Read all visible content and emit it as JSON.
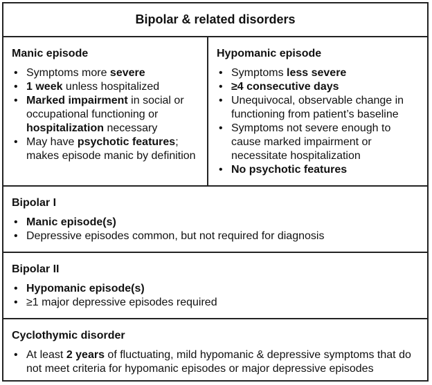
{
  "title": "Bipolar & related disorders",
  "manic": {
    "heading": "Manic episode",
    "items": [
      [
        {
          "t": "Symptoms more "
        },
        {
          "t": "severe",
          "b": true
        }
      ],
      [
        {
          "t": "1 week",
          "b": true
        },
        {
          "t": " unless hospitalized"
        }
      ],
      [
        {
          "t": "Marked impairment",
          "b": true
        },
        {
          "t": " in social or occupational functioning or "
        },
        {
          "t": "hospitalization",
          "b": true
        },
        {
          "t": " necessary"
        }
      ],
      [
        {
          "t": "May have "
        },
        {
          "t": "psychotic features",
          "b": true
        },
        {
          "t": "; makes episode manic by definition"
        }
      ]
    ]
  },
  "hypomanic": {
    "heading": "Hypomanic episode",
    "items": [
      [
        {
          "t": "Symptoms "
        },
        {
          "t": "less severe",
          "b": true
        }
      ],
      [
        {
          "t": "≥4 consecutive days",
          "b": true
        }
      ],
      [
        {
          "t": "Unequivocal, observable change in functioning from patient’s baseline"
        }
      ],
      [
        {
          "t": "Symptoms not severe enough to cause marked impairment or necessitate hospitalization"
        }
      ],
      [
        {
          "t": "No psychotic features",
          "b": true
        }
      ]
    ]
  },
  "bipolar1": {
    "heading": "Bipolar I",
    "items": [
      [
        {
          "t": "Manic episode(s)",
          "b": true
        }
      ],
      [
        {
          "t": "Depressive episodes common, but not required for diagnosis"
        }
      ]
    ]
  },
  "bipolar2": {
    "heading": "Bipolar II",
    "items": [
      [
        {
          "t": "Hypomanic episode(s)",
          "b": true
        }
      ],
      [
        {
          "t": "≥1 major depressive episodes required"
        }
      ]
    ]
  },
  "cyclothymic": {
    "heading": "Cyclothymic disorder",
    "items": [
      [
        {
          "t": "At least "
        },
        {
          "t": "2 years",
          "b": true
        },
        {
          "t": " of fluctuating, mild hypomanic & depressive symptoms that do not meet criteria for hypomanic episodes or major depressive episodes"
        }
      ]
    ]
  }
}
